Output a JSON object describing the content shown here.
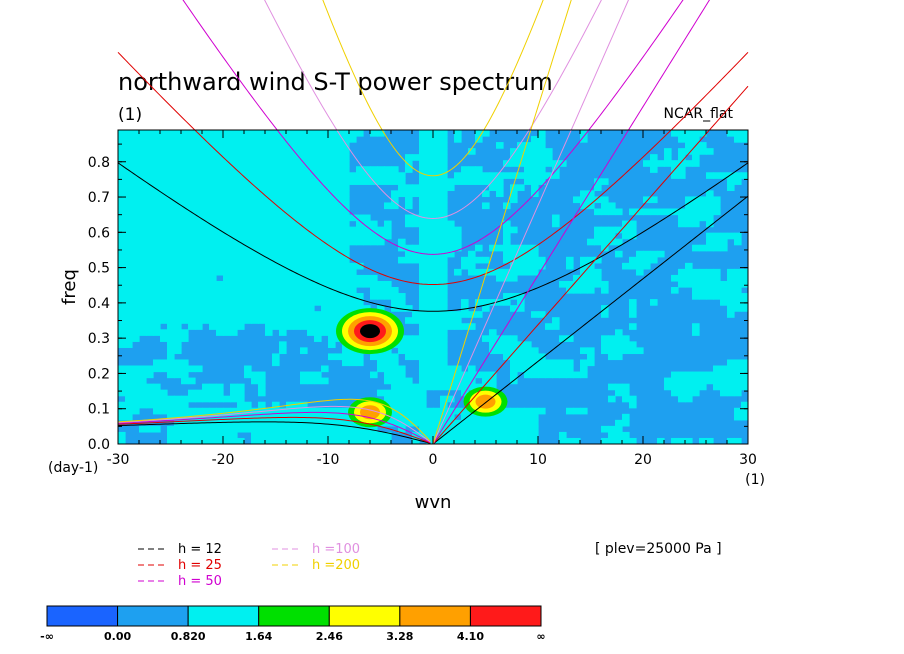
{
  "chart_data": {
    "type": "heatmap",
    "title": "northward wind S-T power spectrum",
    "subtitle": "(1)",
    "project_label": "NCAR_flat",
    "xlabel": "wvn",
    "ylabel": "freq",
    "x_unit": "(1)",
    "y_unit": "(day-1)",
    "xlim": [
      -30,
      30
    ],
    "ylim": [
      0,
      0.89
    ],
    "x_ticks": [
      -30,
      -20,
      -10,
      0,
      10,
      20,
      30
    ],
    "x_tick_labels": [
      "-30",
      "-20",
      "-10",
      "0",
      "10",
      "20",
      "30"
    ],
    "y_ticks": [
      0,
      0.1,
      0.2,
      0.3,
      0.4,
      0.5,
      0.6,
      0.7,
      0.8
    ],
    "y_tick_labels": [
      "0.0",
      "0.1",
      "0.2",
      "0.3",
      "0.4",
      "0.5",
      "0.6",
      "0.7",
      "0.8"
    ],
    "plev_note": "[ plev=25000 Pa ]",
    "colorbar": {
      "colors": [
        "#1a64ff",
        "#1ea0f0",
        "#00f0f0",
        "#00e000",
        "#ffff00",
        "#ffa000",
        "#ff1a1a"
      ],
      "labels": [
        "-∞",
        "0.00",
        "0.820",
        "1.64",
        "2.46",
        "3.28",
        "4.10",
        "∞"
      ]
    },
    "dispersion_curves": [
      {
        "label": "h = 12",
        "h": 12,
        "color": "#000000"
      },
      {
        "label": "h = 25",
        "h": 25,
        "color": "#e00000"
      },
      {
        "label": "h = 50",
        "h": 50,
        "color": "#d000d0"
      },
      {
        "label": "h =100",
        "h": 100,
        "color": "#e090e0"
      },
      {
        "label": "h =200",
        "h": 200,
        "color": "#f0d000"
      }
    ],
    "features": [
      {
        "name": "peak near wvn -6, freq 0.32",
        "wvn": -6,
        "freq": 0.32,
        "level": 7
      },
      {
        "name": "ridge around wvn -7 to -5, freq 0.08 to 0.1",
        "wvn": -6,
        "freq": 0.09,
        "level": 5
      },
      {
        "name": "peak near wvn 5, freq 0.12",
        "wvn": 5,
        "freq": 0.12,
        "level": 5
      }
    ]
  }
}
